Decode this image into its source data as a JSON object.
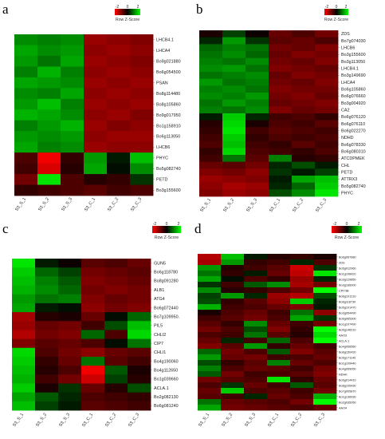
{
  "chart_data": [
    {
      "type": "heatmap",
      "panel": "a",
      "legend": {
        "title": "Row Z-Score",
        "ticks": [
          "-2",
          "0",
          "2"
        ]
      },
      "columns": [
        "S3_S_1",
        "S3_S_2",
        "S3_S_3",
        "S3_C_1",
        "S3_C_2",
        "S3_C_3"
      ],
      "rows": [
        "LHCB4.1",
        "LHCA4",
        "Bo9g021880",
        "Bo6g054500",
        "PSAN",
        "Bo8g114480",
        "Bo8g105860",
        "Bo9g017950",
        "Bo1g158910",
        "Bo6g113050",
        "LHCB6",
        "PHYC",
        "Bo5g082740",
        "PETD",
        "Bo3g155600"
      ],
      "values": [
        [
          1.1,
          1.0,
          1.1,
          -1.2,
          -1.1,
          -1.0
        ],
        [
          1.3,
          1.1,
          1.2,
          -1.1,
          -1.2,
          -1.1
        ],
        [
          1.2,
          0.9,
          1.3,
          -1.2,
          -1.1,
          -1.0
        ],
        [
          1.0,
          1.4,
          1.0,
          -1.1,
          -1.2,
          -1.1
        ],
        [
          1.3,
          1.2,
          1.1,
          -1.2,
          -1.1,
          -1.2
        ],
        [
          1.1,
          1.0,
          1.3,
          -1.1,
          -1.2,
          -1.1
        ],
        [
          1.2,
          1.5,
          1.0,
          -1.2,
          -1.1,
          -1.2
        ],
        [
          1.4,
          1.3,
          1.1,
          -1.1,
          -1.2,
          -1.0
        ],
        [
          1.0,
          1.2,
          1.4,
          -1.2,
          -1.0,
          -1.1
        ],
        [
          1.2,
          1.1,
          1.2,
          -1.1,
          -1.2,
          -1.2
        ],
        [
          1.3,
          1.0,
          1.1,
          -1.2,
          -1.1,
          -1.1
        ],
        [
          -0.6,
          -1.9,
          -0.4,
          1.2,
          0.2,
          1.5
        ],
        [
          -0.5,
          -1.7,
          -0.3,
          1.3,
          0.1,
          1.1
        ],
        [
          -0.9,
          1.8,
          -0.6,
          -0.3,
          -0.4,
          0.4
        ],
        [
          -0.4,
          -0.5,
          -0.6,
          -0.7,
          -0.5,
          -0.6
        ]
      ]
    },
    {
      "type": "heatmap",
      "panel": "b",
      "legend": {
        "title": "Row Z-Score",
        "ticks": [
          "-2",
          "0",
          "2"
        ]
      },
      "columns": [
        "S3_S_1",
        "S3_S_2",
        "S3_S_3",
        "S3_C_1",
        "S3_C_2",
        "S3_C_3"
      ],
      "rows": [
        "ZDS",
        "Bo7g074030",
        "LHCB6",
        "Bo3g155600",
        "Bo3g113050",
        "LHCB4.1",
        "Bo3g149690",
        "LHCA4",
        "Bo6g105860",
        "Bo6g076660",
        "Bo3g004920",
        "CA2",
        "Bo6g076120",
        "Bo6g076110",
        "Bo6g022270",
        "NDHD",
        "Bo6g078330",
        "Bo6g080310",
        "ATCDPMEK",
        "CHL",
        "PETD",
        "ATTRX3",
        "Bo5g082740",
        "PHYC"
      ],
      "values": [
        [
          -0.2,
          0.5,
          -0.1,
          -0.8,
          -0.6,
          -0.9
        ],
        [
          0.3,
          1.2,
          0.4,
          -0.7,
          -0.8,
          -0.6
        ],
        [
          0.8,
          1.0,
          0.9,
          -0.9,
          -0.8,
          -1.0
        ],
        [
          0.9,
          1.1,
          0.8,
          -0.8,
          -1.0,
          -0.9
        ],
        [
          1.0,
          0.9,
          1.1,
          -0.9,
          -0.8,
          -1.0
        ],
        [
          1.1,
          1.2,
          0.9,
          -1.0,
          -0.9,
          -0.8
        ],
        [
          0.9,
          1.0,
          1.1,
          -0.8,
          -1.0,
          -0.9
        ],
        [
          1.2,
          0.9,
          1.0,
          -0.9,
          -0.8,
          -1.0
        ],
        [
          1.0,
          1.1,
          0.9,
          -1.0,
          -0.9,
          -0.9
        ],
        [
          1.1,
          1.0,
          1.2,
          -0.9,
          -1.0,
          -0.8
        ],
        [
          0.9,
          1.2,
          1.0,
          -0.8,
          -0.9,
          -1.0
        ],
        [
          1.0,
          0.9,
          1.1,
          -1.0,
          -0.8,
          -0.9
        ],
        [
          0.2,
          1.6,
          0.3,
          -0.5,
          -0.6,
          -0.4
        ],
        [
          -0.3,
          1.7,
          -0.2,
          -0.6,
          -0.5,
          -0.7
        ],
        [
          -0.4,
          1.8,
          -0.5,
          -0.7,
          -0.6,
          -0.5
        ],
        [
          -0.5,
          1.6,
          -0.4,
          -0.6,
          -0.5,
          -0.6
        ],
        [
          -0.6,
          1.5,
          -0.5,
          -0.4,
          -0.7,
          -0.5
        ],
        [
          -0.4,
          1.7,
          -0.6,
          -0.5,
          -0.4,
          -0.6
        ],
        [
          -0.5,
          0.9,
          -0.7,
          1.0,
          -0.3,
          -0.4
        ],
        [
          -0.8,
          -0.7,
          -0.9,
          0.3,
          0.6,
          0.2
        ],
        [
          -1.0,
          -0.9,
          -1.1,
          0.4,
          0.2,
          0.5
        ],
        [
          -1.2,
          -1.1,
          -1.0,
          0.2,
          1.3,
          1.5
        ],
        [
          -1.1,
          -1.3,
          -1.2,
          0.3,
          0.8,
          1.6
        ],
        [
          -1.0,
          -1.2,
          -1.1,
          0.6,
          1.1,
          1.8
        ]
      ]
    },
    {
      "type": "heatmap",
      "panel": "c",
      "legend": {
        "title": "Row Z-Score",
        "ticks": [
          "-2",
          "0",
          "2"
        ]
      },
      "columns": [
        "S3_S_1",
        "S3_S_2",
        "S3_S_3",
        "S3_C_1",
        "S3_C_2",
        "S3_C_3"
      ],
      "rows": [
        "GUN5",
        "Bo6g118780",
        "Bo8g091280",
        "ALB1",
        "ATG4",
        "Bo6g072440",
        "Bo7g109950.",
        "PIL5",
        "CHLI2",
        "CIP7",
        "CHLI1",
        "Bo4g190060",
        "Bo4g112650",
        "Bo1g039660",
        "ACLA.1",
        "Bo2g082130",
        "Bo6g081240"
      ],
      "values": [
        [
          1.8,
          0.2,
          -0.1,
          -0.7,
          -0.6,
          -0.8
        ],
        [
          1.6,
          0.8,
          0.5,
          -0.9,
          -0.8,
          -0.7
        ],
        [
          1.5,
          1.0,
          0.7,
          -1.0,
          -0.9,
          -0.8
        ],
        [
          1.4,
          1.1,
          0.8,
          -0.9,
          -1.0,
          -0.9
        ],
        [
          1.2,
          0.9,
          1.0,
          -1.0,
          -0.8,
          -0.9
        ],
        [
          1.3,
          0.2,
          0.1,
          -1.1,
          -0.9,
          -1.0
        ],
        [
          -1.3,
          -0.3,
          -0.2,
          -0.8,
          0.1,
          0.8
        ],
        [
          -1.2,
          -0.8,
          -0.9,
          -0.5,
          0.6,
          1.5
        ],
        [
          -1.4,
          -0.9,
          -1.0,
          0.8,
          -0.6,
          1.7
        ],
        [
          -1.0,
          -0.7,
          -0.8,
          -0.6,
          0.1,
          0.9
        ],
        [
          1.7,
          -0.6,
          -0.9,
          -1.1,
          -0.8,
          -0.7
        ],
        [
          1.6,
          -0.4,
          -0.8,
          0.9,
          -0.7,
          -0.5
        ],
        [
          1.5,
          -0.3,
          -0.6,
          -1.9,
          0.7,
          -0.2
        ],
        [
          1.4,
          -0.5,
          -0.9,
          -1.6,
          0.5,
          -0.3
        ],
        [
          1.6,
          -0.2,
          0.4,
          -0.8,
          -0.3,
          0.6
        ],
        [
          1.3,
          0.7,
          0.3,
          -0.6,
          -0.5,
          -0.4
        ],
        [
          1.5,
          0.5,
          0.2,
          -0.7,
          -0.6,
          -0.5
        ]
      ]
    },
    {
      "type": "heatmap",
      "panel": "d",
      "legend": {
        "title": "Row Z-Score",
        "ticks": [
          "-2",
          "0",
          "2"
        ]
      },
      "columns": [
        "S3_S_1",
        "S3_S_2",
        "S3_S_3",
        "S3_C_1",
        "S3_C_2",
        "S3_C_3"
      ],
      "rows": [
        "Bo6g067680",
        "ZDS",
        "Bo5g012960",
        "Bo1g108420",
        "Bo3g129850",
        "Bo3g166000",
        "CRY3B",
        "Bo6g101210",
        "Bo6g118730",
        "Bo5g101470",
        "Bo3g054490",
        "Bo6g065300",
        "Bo1g107490",
        "Bo5g146210",
        "AAO3",
        "ACLA.1",
        "Bo4g056560",
        "Bo6g150420",
        "Bo5g171140",
        "Bo1g109440",
        "Bo4g059050",
        "NDHK",
        "Bo5g014410",
        "Bo8g105430",
        "Bo7g005870",
        "Bo1g136930",
        "Bo2g035050",
        "AAO4"
      ],
      "values": [
        [
          -1.4,
          1.5,
          0.2,
          -0.3,
          -0.4,
          -0.2
        ],
        [
          -1.3,
          1.2,
          -0.4,
          -0.5,
          0.3,
          -0.6
        ],
        [
          1.2,
          -0.3,
          -0.5,
          -0.7,
          -1.6,
          0.4
        ],
        [
          0.9,
          -0.4,
          0.2,
          -0.8,
          -1.5,
          1.8
        ],
        [
          1.3,
          0.1,
          -0.6,
          -0.4,
          -1.2,
          0.3
        ],
        [
          0.4,
          -0.5,
          0.7,
          1.1,
          -1.3,
          -0.9
        ],
        [
          1.1,
          -0.3,
          -0.4,
          -0.6,
          -0.9,
          2.5
        ],
        [
          0.5,
          1.2,
          0.3,
          -1.2,
          -1.4,
          0.6
        ],
        [
          0.6,
          -0.4,
          -0.7,
          -1.1,
          1.6,
          0.3
        ],
        [
          1.4,
          -0.5,
          -0.6,
          -0.8,
          -1.0,
          0.2
        ],
        [
          -0.2,
          -0.6,
          -0.8,
          -0.5,
          0.9,
          -1.1
        ],
        [
          -0.5,
          -0.7,
          -0.9,
          -0.6,
          1.3,
          0.4
        ],
        [
          -0.7,
          -0.4,
          1.1,
          -0.8,
          -0.5,
          -0.9
        ],
        [
          -0.9,
          -0.6,
          0.6,
          -1.0,
          -0.4,
          2.5
        ],
        [
          -0.6,
          -0.5,
          0.9,
          -0.7,
          -0.3,
          1.7
        ],
        [
          -0.8,
          0.3,
          -0.5,
          0.8,
          -0.6,
          2.5
        ],
        [
          -1.0,
          -0.7,
          1.2,
          -0.4,
          -0.8,
          -0.5
        ],
        [
          0.8,
          -0.9,
          -0.6,
          0.7,
          -1.0,
          -0.7
        ],
        [
          1.2,
          -0.8,
          -0.9,
          -0.5,
          -0.6,
          -0.8
        ],
        [
          0.6,
          -0.4,
          -0.7,
          1.0,
          -0.8,
          -0.6
        ],
        [
          1.0,
          -0.6,
          -0.8,
          -0.7,
          -0.5,
          -0.9
        ],
        [
          0.7,
          -0.9,
          -0.5,
          -0.6,
          -0.7,
          -1.0
        ],
        [
          -0.9,
          -0.7,
          -0.6,
          1.8,
          -0.4,
          -0.8
        ],
        [
          -0.6,
          0.4,
          -0.8,
          -0.5,
          0.7,
          -0.7
        ],
        [
          -0.8,
          1.6,
          -0.6,
          -0.7,
          -0.5,
          -0.9
        ],
        [
          -0.7,
          -0.5,
          0.3,
          -0.8,
          -0.6,
          1.4
        ],
        [
          0.9,
          -0.8,
          -0.7,
          -0.6,
          -0.9,
          2.0
        ],
        [
          1.3,
          -0.9,
          -0.8,
          -0.7,
          -0.6,
          -0.8
        ]
      ]
    }
  ]
}
